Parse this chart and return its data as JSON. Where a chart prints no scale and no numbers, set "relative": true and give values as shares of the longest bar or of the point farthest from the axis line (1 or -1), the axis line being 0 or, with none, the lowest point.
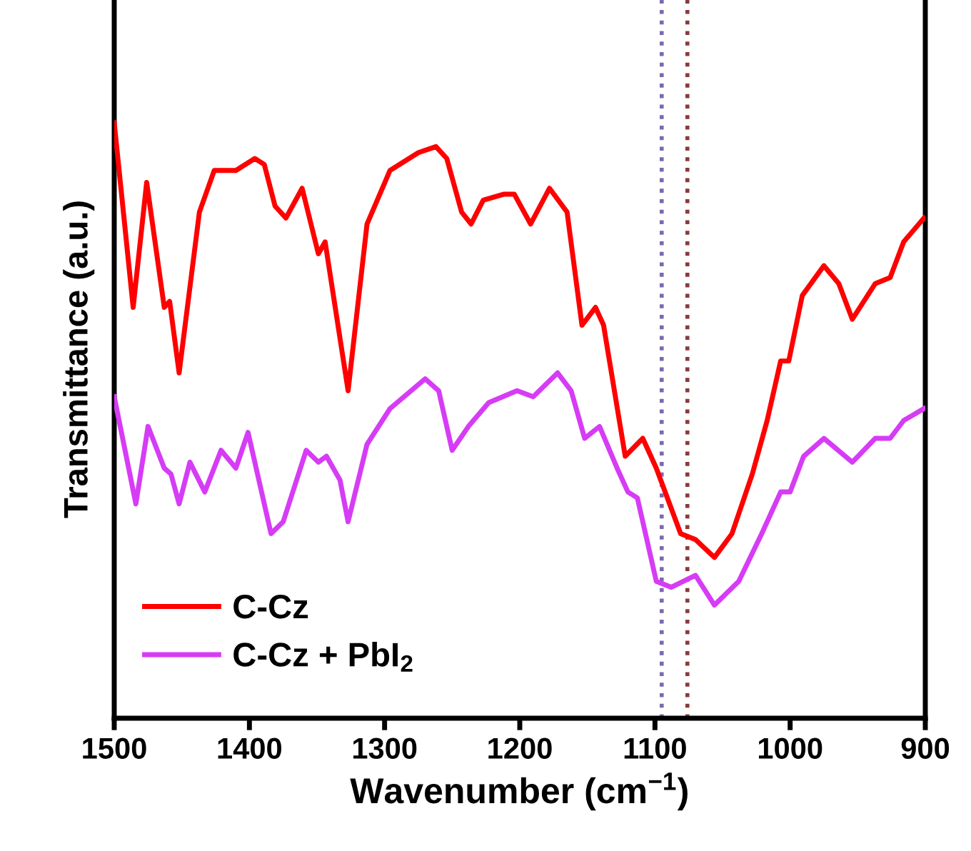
{
  "chart_data": {
    "type": "line",
    "relative": true,
    "xlabel": "Wavenumber (cm$^{−1}$)",
    "ylabel": "Transmittance (a.u.)",
    "xlim": [
      1500,
      900
    ],
    "xticks": [
      1500,
      1400,
      1300,
      1200,
      1100,
      1000,
      900
    ],
    "tick_labels": "x",
    "grid": false,
    "legend": "bottom left",
    "line_style": "solid",
    "marker": "none",
    "series": [
      {
        "name": "C-Cz",
        "color": "#ff0000",
        "x": [
          1500,
          1486,
          1476,
          1463,
          1459,
          1452,
          1437,
          1426,
          1419,
          1410,
          1396,
          1389,
          1381,
          1373,
          1361,
          1349,
          1344,
          1327,
          1313,
          1296,
          1275,
          1262,
          1254,
          1243,
          1236,
          1227,
          1212,
          1204,
          1192,
          1178,
          1165,
          1154,
          1144,
          1138,
          1122,
          1109,
          1099,
          1081,
          1070,
          1056,
          1043,
          1028,
          1017,
          1007,
          1001,
          991,
          975,
          964,
          954,
          937,
          926,
          916,
          901
        ],
        "values": [
          1.0,
          0.69,
          0.9,
          0.69,
          0.7,
          0.58,
          0.85,
          0.92,
          0.92,
          0.92,
          0.94,
          0.93,
          0.86,
          0.84,
          0.89,
          0.78,
          0.8,
          0.55,
          0.83,
          0.92,
          0.95,
          0.96,
          0.94,
          0.85,
          0.83,
          0.87,
          0.88,
          0.88,
          0.83,
          0.89,
          0.85,
          0.66,
          0.69,
          0.66,
          0.44,
          0.47,
          0.42,
          0.31,
          0.3,
          0.27,
          0.31,
          0.41,
          0.5,
          0.6,
          0.6,
          0.71,
          0.76,
          0.73,
          0.67,
          0.73,
          0.74,
          0.8,
          0.84
        ]
      },
      {
        "name": "C-Cz + PbI$_{2}$",
        "color": "#d63cf5",
        "x": [
          1500,
          1484,
          1475,
          1463,
          1458,
          1452,
          1444,
          1433,
          1421,
          1410,
          1401,
          1384,
          1375,
          1358,
          1349,
          1343,
          1333,
          1327,
          1313,
          1296,
          1270,
          1260,
          1250,
          1238,
          1223,
          1202,
          1190,
          1172,
          1162,
          1152,
          1141,
          1128,
          1120,
          1113,
          1099,
          1088,
          1070,
          1056,
          1038,
          1021,
          1007,
          1000,
          990,
          975,
          954,
          937,
          926,
          916,
          901
        ],
        "values": [
          0.54,
          0.36,
          0.49,
          0.42,
          0.41,
          0.36,
          0.43,
          0.38,
          0.45,
          0.42,
          0.48,
          0.31,
          0.33,
          0.45,
          0.43,
          0.44,
          0.4,
          0.33,
          0.46,
          0.52,
          0.57,
          0.55,
          0.45,
          0.49,
          0.53,
          0.55,
          0.54,
          0.58,
          0.55,
          0.47,
          0.49,
          0.42,
          0.38,
          0.37,
          0.23,
          0.22,
          0.24,
          0.19,
          0.23,
          0.31,
          0.38,
          0.38,
          0.44,
          0.47,
          0.43,
          0.47,
          0.47,
          0.5,
          0.52
        ]
      }
    ],
    "ref_lines": [
      {
        "axis": "x",
        "value": 1095,
        "color": "#7b68b0",
        "line_style": "dotted"
      },
      {
        "axis": "x",
        "value": 1076,
        "color": "#8b3a3a",
        "line_style": "dotted"
      }
    ]
  }
}
